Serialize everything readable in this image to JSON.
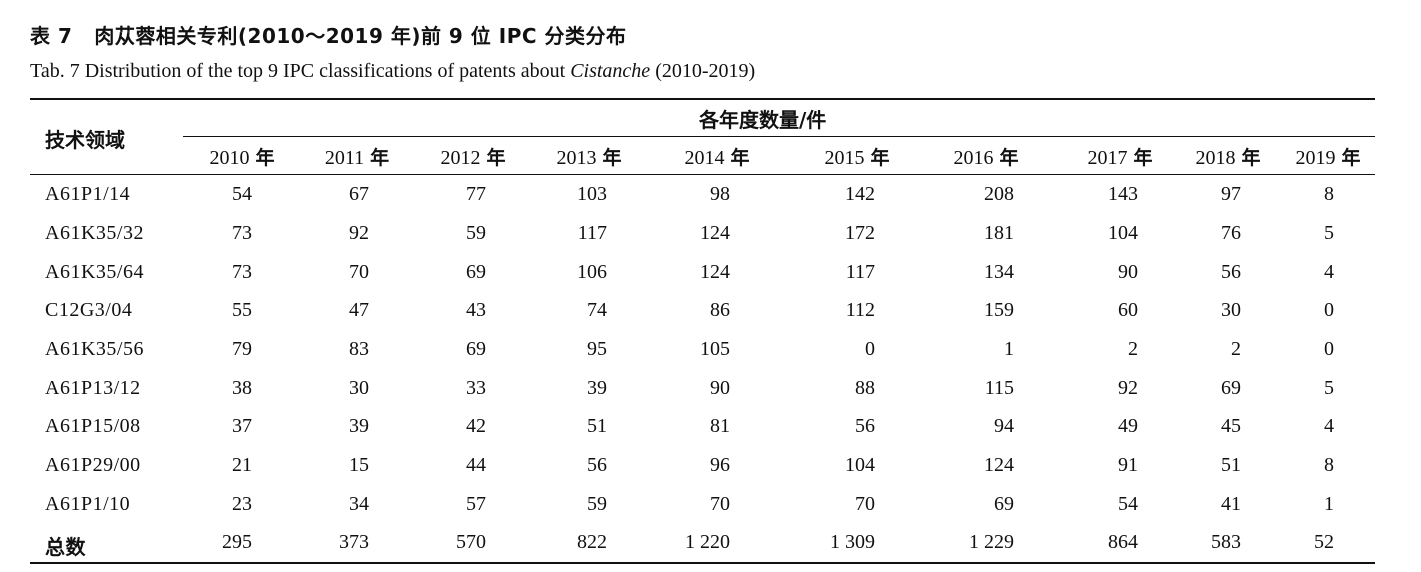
{
  "title": {
    "table_no_cn": "表 7",
    "cn": "肉苁蓉相关专利(2010～2019 年)前 9 位 IPC 分类分布",
    "en_prefix": "Tab. 7 Distribution of the top 9 IPC classifications of patents about ",
    "en_italic": "Cistanche",
    "en_suffix": " (2010-2019)"
  },
  "header": {
    "tech_field": "技术领域",
    "group": "各年度数量/件",
    "year_suffix": "年",
    "years": [
      "2010",
      "2011",
      "2012",
      "2013",
      "2014",
      "2015",
      "2016",
      "2017",
      "2018",
      "2019"
    ]
  },
  "rows": [
    {
      "label": "A61P1/14",
      "values": [
        "54",
        "67",
        "77",
        "103",
        "98",
        "142",
        "208",
        "143",
        "97",
        "8"
      ]
    },
    {
      "label": "A61K35/32",
      "values": [
        "73",
        "92",
        "59",
        "117",
        "124",
        "172",
        "181",
        "104",
        "76",
        "5"
      ]
    },
    {
      "label": "A61K35/64",
      "values": [
        "73",
        "70",
        "69",
        "106",
        "124",
        "117",
        "134",
        "90",
        "56",
        "4"
      ]
    },
    {
      "label": "C12G3/04",
      "values": [
        "55",
        "47",
        "43",
        "74",
        "86",
        "112",
        "159",
        "60",
        "30",
        "0"
      ]
    },
    {
      "label": "A61K35/56",
      "values": [
        "79",
        "83",
        "69",
        "95",
        "105",
        "0",
        "1",
        "2",
        "2",
        "0"
      ]
    },
    {
      "label": "A61P13/12",
      "values": [
        "38",
        "30",
        "33",
        "39",
        "90",
        "88",
        "115",
        "92",
        "69",
        "5"
      ]
    },
    {
      "label": "A61P15/08",
      "values": [
        "37",
        "39",
        "42",
        "51",
        "81",
        "56",
        "94",
        "49",
        "45",
        "4"
      ]
    },
    {
      "label": "A61P29/00",
      "values": [
        "21",
        "15",
        "44",
        "56",
        "96",
        "104",
        "124",
        "91",
        "51",
        "8"
      ]
    },
    {
      "label": "A61P1/10",
      "values": [
        "23",
        "34",
        "57",
        "59",
        "70",
        "70",
        "69",
        "54",
        "41",
        "1"
      ]
    },
    {
      "label": "总数",
      "values": [
        "295",
        "373",
        "570",
        "822",
        "1 220",
        "1 309",
        "1 229",
        "864",
        "583",
        "52"
      ]
    }
  ]
}
